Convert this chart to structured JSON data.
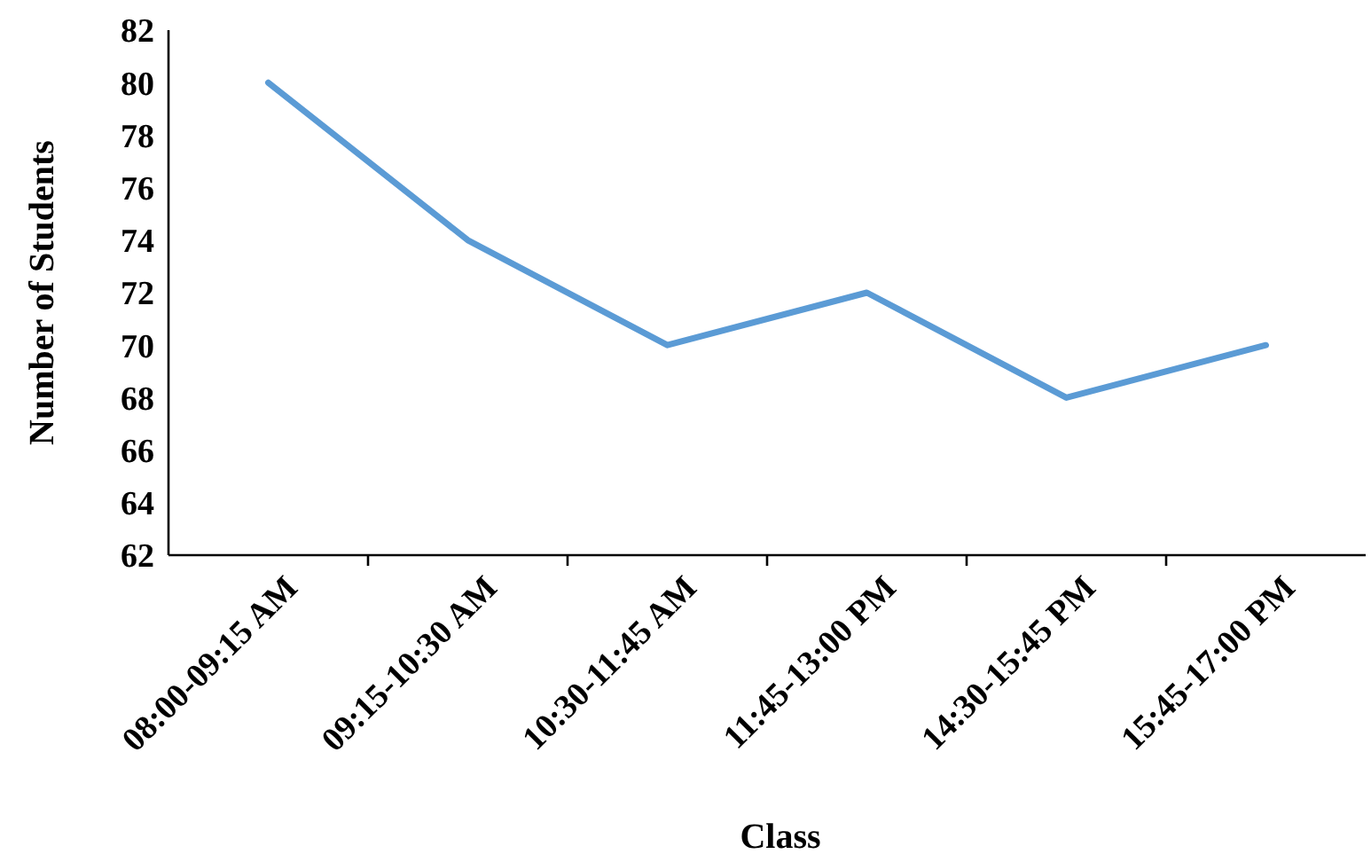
{
  "chart_data": {
    "type": "line",
    "xlabel": "Class",
    "ylabel": "Number of Students",
    "categories": [
      "08:00-09:15 AM",
      "09:15-10:30 AM",
      "10:30-11:45 AM",
      "11:45-13:00 PM",
      "14:30-15:45 PM",
      "15:45-17:00 PM"
    ],
    "series": [
      {
        "color": "#5b9bd5",
        "values": [
          80,
          74,
          70,
          72,
          68,
          70
        ]
      }
    ],
    "ylim": [
      62,
      82
    ],
    "yticks": [
      62,
      64,
      66,
      68,
      70,
      72,
      74,
      76,
      78,
      80,
      82
    ],
    "grid": false,
    "marker": "none",
    "line_style": "solid"
  }
}
